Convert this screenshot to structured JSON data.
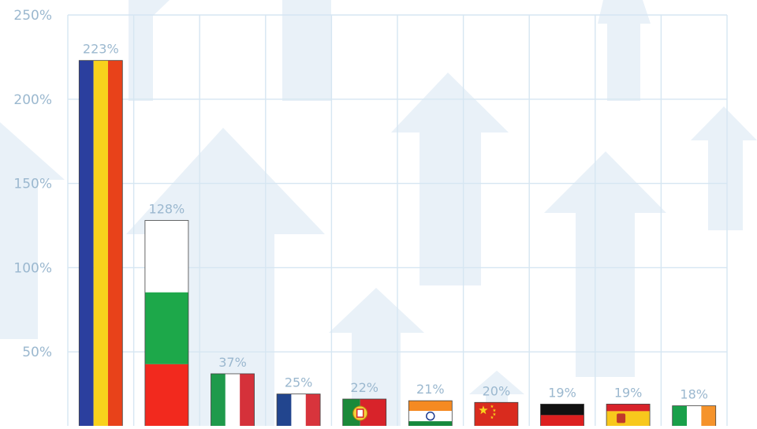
{
  "chart_data": {
    "type": "bar",
    "categories": [
      "Romania",
      "Bulgaria",
      "Italy",
      "France",
      "Portugal",
      "India",
      "China",
      "Germany",
      "Spain",
      "Ireland"
    ],
    "values": [
      223,
      128,
      37,
      25,
      22,
      21,
      20,
      19,
      19,
      18
    ],
    "value_labels": [
      "223%",
      "128%",
      "37%",
      "25%",
      "22%",
      "21%",
      "20%",
      "19%",
      "19%",
      "18%"
    ],
    "flag_icons": [
      "romania-flag-icon",
      "bulgaria-flag-icon",
      "italy-flag-icon",
      "france-flag-icon",
      "portugal-flag-icon",
      "india-flag-icon",
      "china-flag-icon",
      "germany-flag-icon",
      "spain-flag-icon",
      "ireland-flag-icon"
    ],
    "y_ticks": [
      50,
      100,
      150,
      200,
      250
    ],
    "y_tick_labels": [
      "50%",
      "100%",
      "150%",
      "200%",
      "250%"
    ],
    "ylim": [
      0,
      250
    ],
    "grid": true,
    "background_icon": "arrow-up-icon",
    "colors": {
      "grid": "#d6e6f2",
      "label": "#9bb8cf",
      "arrow": "#e9f1f8",
      "bar_outline": "#444444"
    }
  }
}
